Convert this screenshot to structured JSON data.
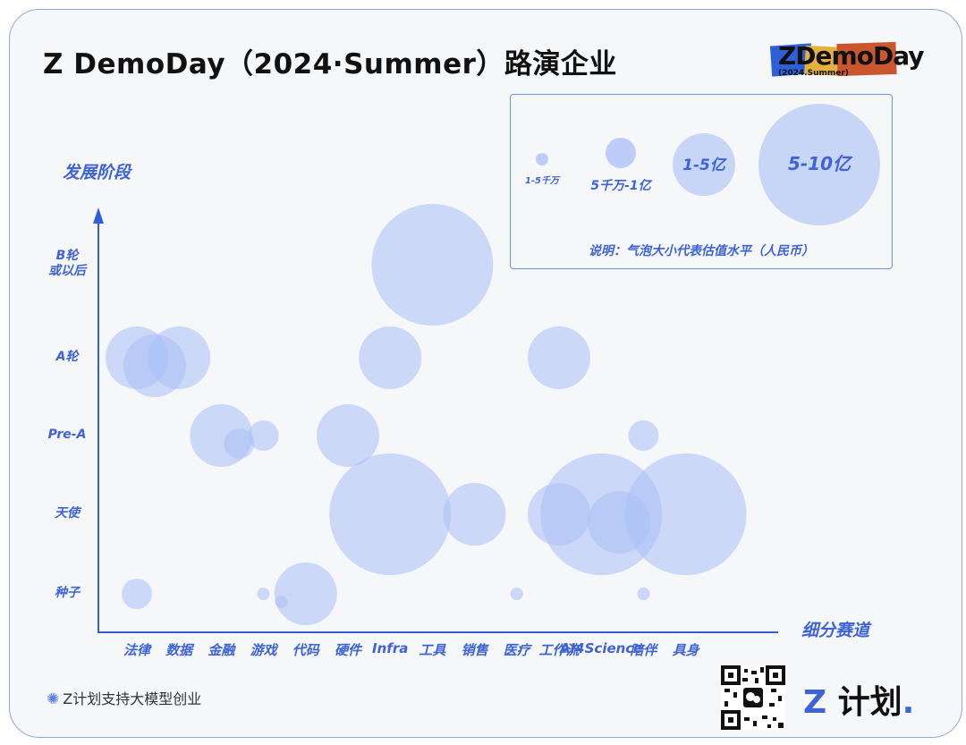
{
  "title": "Z DemoDay（2024·Summer）路演企业",
  "logo": {
    "main": "ZDemoDay",
    "sub": "(2024.Summer)"
  },
  "footer": {
    "text": "Z计划支持大模型创业",
    "brand_z": "Z",
    "brand_text": "计划",
    "brand_dot": "."
  },
  "colors": {
    "bubble": "#a9bff5",
    "bubble_opacity": 0.55,
    "axis": "#2f5fd8",
    "label": "#3d63d6"
  },
  "chart_data": {
    "type": "scatter",
    "xlabel": "细分赛道",
    "ylabel": "发展阶段",
    "categories": [
      "法律",
      "数据",
      "金融",
      "游戏",
      "代码",
      "硬件",
      "Infra",
      "工具",
      "销售",
      "医疗",
      "工作流",
      "AI4Science",
      "陪伴",
      "具身"
    ],
    "stages": [
      "种子",
      "天使",
      "Pre-A",
      "A轮",
      "B轮\n或以后"
    ],
    "size_legend": {
      "title": "说明：气泡大小代表估值水平（人民币）",
      "items": [
        {
          "label": "1-5千万",
          "rank": 1
        },
        {
          "label": "5千万-1亿",
          "rank": 2
        },
        {
          "label": "1-5亿",
          "rank": 3
        },
        {
          "label": "5-10亿",
          "rank": 4
        }
      ]
    },
    "points": [
      {
        "x": "法律",
        "stage": "A轮",
        "size": 3
      },
      {
        "x": "法律",
        "stage": "A轮",
        "size": 3
      },
      {
        "x": "数据",
        "stage": "A轮",
        "size": 3
      },
      {
        "x": "法律",
        "stage": "种子",
        "size": 2
      },
      {
        "x": "金融",
        "stage": "Pre-A",
        "size": 3
      },
      {
        "x": "金融",
        "stage": "Pre-A",
        "size": 2
      },
      {
        "x": "游戏",
        "stage": "Pre-A",
        "size": 2
      },
      {
        "x": "游戏",
        "stage": "种子",
        "size": 1
      },
      {
        "x": "游戏",
        "stage": "种子",
        "size": 1
      },
      {
        "x": "代码",
        "stage": "种子",
        "size": 3
      },
      {
        "x": "硬件",
        "stage": "Pre-A",
        "size": 3
      },
      {
        "x": "Infra",
        "stage": "A轮",
        "size": 3
      },
      {
        "x": "Infra",
        "stage": "天使",
        "size": 4
      },
      {
        "x": "工具",
        "stage": "B轮\n或以后",
        "size": 4
      },
      {
        "x": "销售",
        "stage": "天使",
        "size": 3
      },
      {
        "x": "医疗",
        "stage": "种子",
        "size": 1
      },
      {
        "x": "工作流",
        "stage": "A轮",
        "size": 3
      },
      {
        "x": "工作流",
        "stage": "天使",
        "size": 3
      },
      {
        "x": "AI4Science",
        "stage": "天使",
        "size": 4
      },
      {
        "x": "AI4Science",
        "stage": "天使",
        "size": 3
      },
      {
        "x": "陪伴",
        "stage": "Pre-A",
        "size": 2
      },
      {
        "x": "陪伴",
        "stage": "种子",
        "size": 1
      },
      {
        "x": "具身",
        "stage": "天使",
        "size": 4
      }
    ]
  }
}
